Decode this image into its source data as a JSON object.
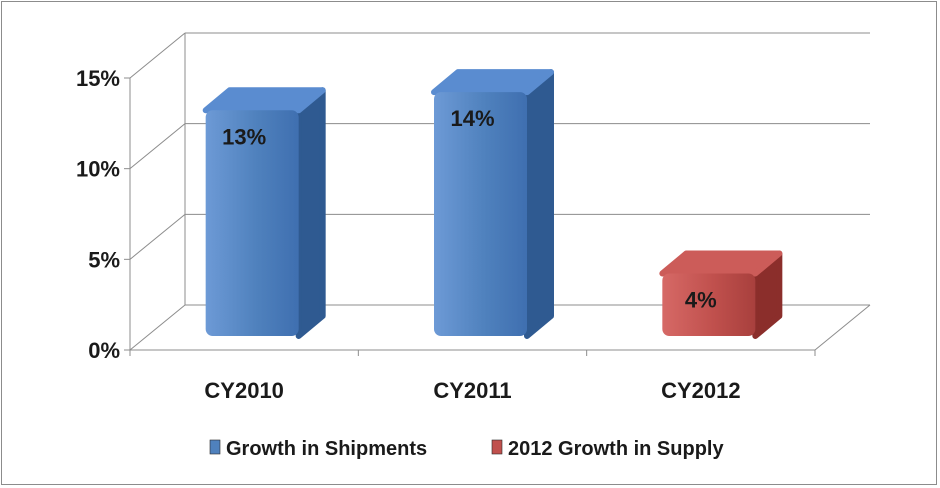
{
  "chart_data": {
    "type": "bar",
    "categories": [
      "CY2010",
      "CY2011",
      "CY2012"
    ],
    "series": [
      {
        "name": "Growth in Shipments",
        "values": [
          13,
          14,
          null
        ],
        "labels": [
          "13%",
          "14%",
          ""
        ],
        "color": "#4f81bd"
      },
      {
        "name": "2012 Growth in Supply",
        "values": [
          null,
          null,
          4
        ],
        "labels": [
          "",
          "",
          "4%"
        ],
        "color": "#c0504d"
      }
    ],
    "ylim": [
      0,
      15
    ],
    "yticks": [
      0,
      5,
      10,
      15
    ],
    "ytick_labels": [
      "0%",
      "5%",
      "10%",
      "15%"
    ],
    "grid": true,
    "legend": "bottom",
    "style": "3d-column"
  }
}
